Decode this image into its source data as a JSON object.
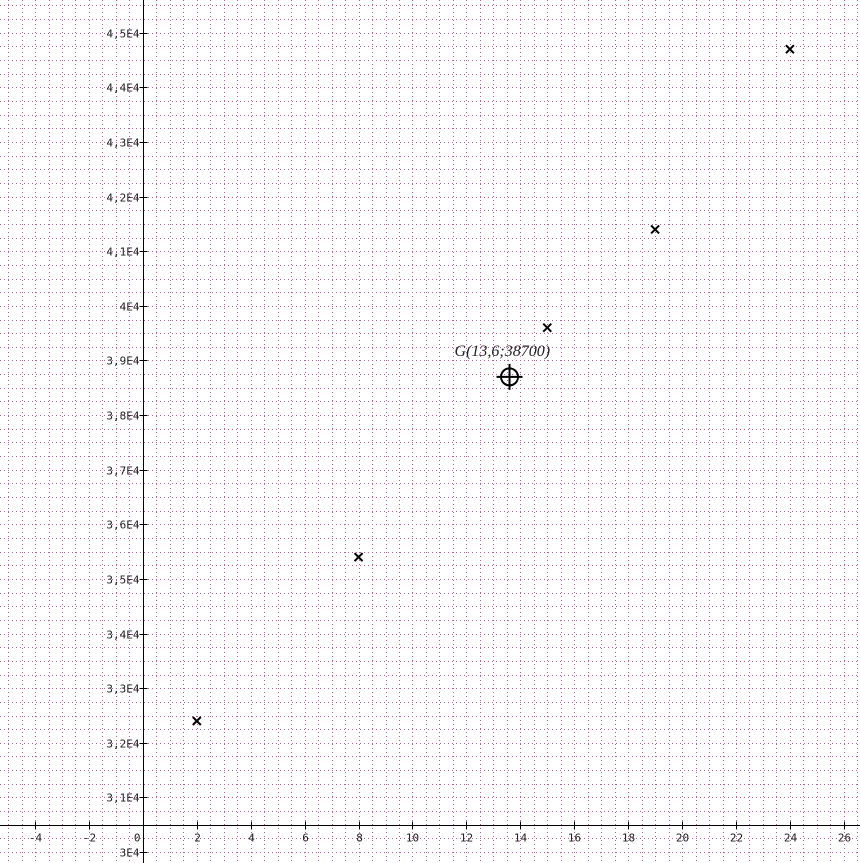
{
  "chart_data": {
    "type": "scatter",
    "title": "",
    "xlabel": "",
    "ylabel": "",
    "xlim": [
      -5.3,
      26.6
    ],
    "ylim": [
      29800,
      45600
    ],
    "x_ticks": [
      -4,
      -2,
      0,
      2,
      4,
      6,
      8,
      10,
      12,
      14,
      16,
      18,
      20,
      22,
      24,
      26
    ],
    "x_tick_labels": [
      "-4",
      "-2",
      "0",
      "2",
      "4",
      "6",
      "8",
      "10",
      "12",
      "14",
      "16",
      "18",
      "20",
      "22",
      "24",
      "26"
    ],
    "y_ticks": [
      30000,
      31000,
      32000,
      33000,
      34000,
      35000,
      36000,
      37000,
      38000,
      39000,
      40000,
      41000,
      42000,
      43000,
      44000,
      45000
    ],
    "y_tick_labels": [
      "3E4",
      "3,1E4",
      "3,2E4",
      "3,3E4",
      "3,4E4",
      "3,5E4",
      "3,6E4",
      "3,7E4",
      "3,8E4",
      "3,9E4",
      "4E4",
      "4,1E4",
      "4,2E4",
      "4,3E4",
      "4,4E4",
      "4,5E4"
    ],
    "grid": true,
    "grid_minor_x": 0.5,
    "grid_minor_y": 250,
    "colors": {
      "grid": "#b0609c",
      "axis": "#000000",
      "marker": "#000000"
    },
    "series": [
      {
        "marker": "x",
        "points": [
          {
            "x": 2,
            "y": 32400
          },
          {
            "x": 8,
            "y": 35400
          },
          {
            "x": 15,
            "y": 39600
          },
          {
            "x": 19,
            "y": 41400
          },
          {
            "x": 24,
            "y": 44700
          }
        ]
      }
    ],
    "annotations": [
      {
        "x": 13.6,
        "y": 38700,
        "marker": "crosshair-circle",
        "text": "G(13,6;38700)"
      }
    ]
  }
}
